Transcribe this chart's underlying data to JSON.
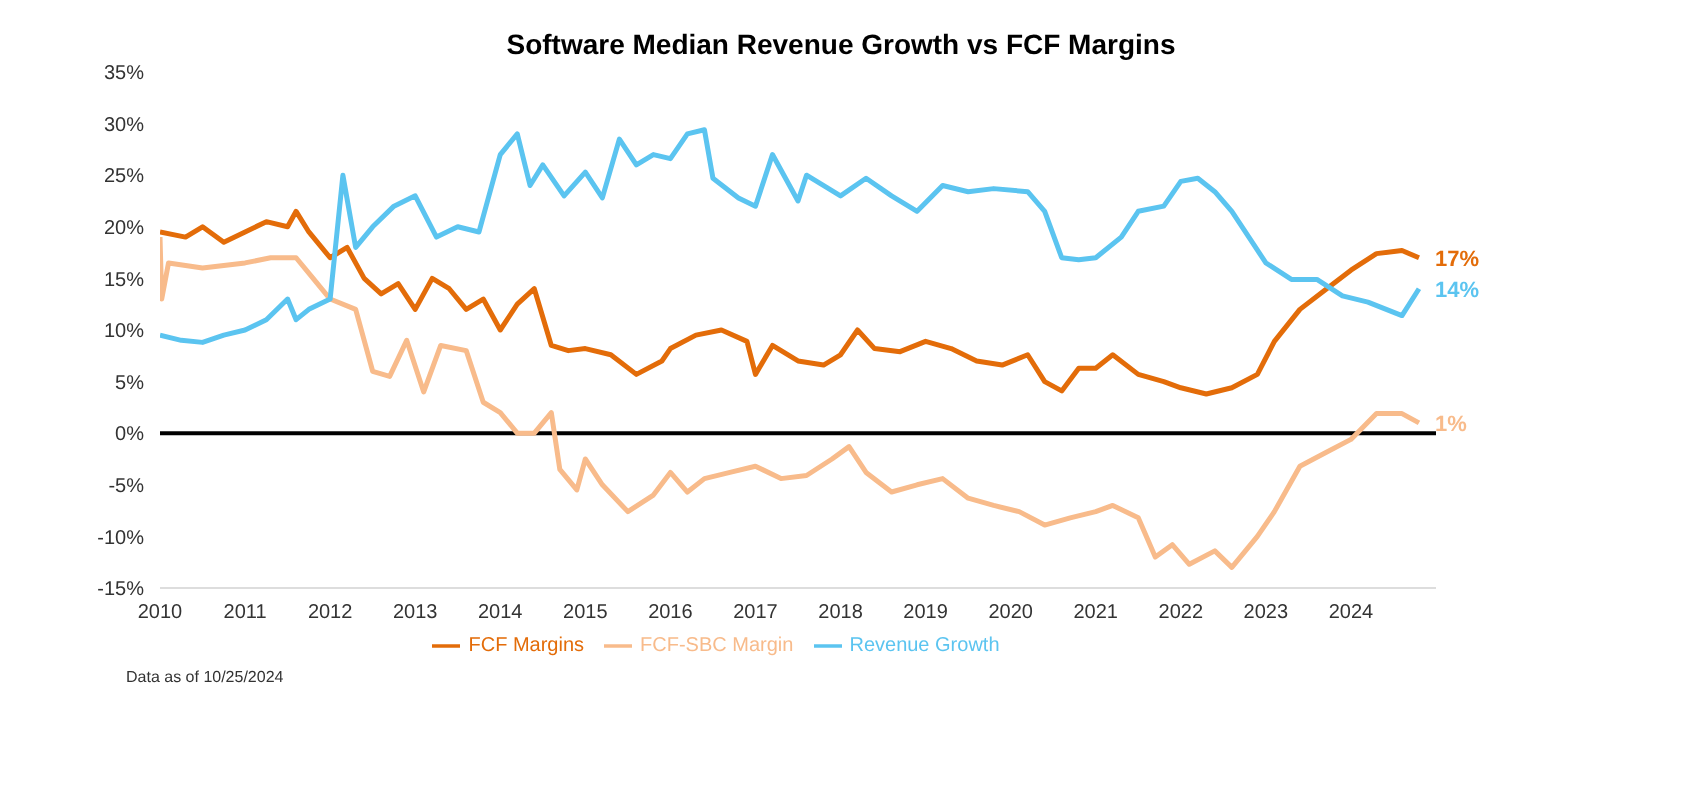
{
  "chart_data": {
    "type": "line",
    "title": "Software Median Revenue Growth vs FCF Margins",
    "xlim": [
      2010,
      2025
    ],
    "xticks": [
      2010,
      2011,
      2012,
      2013,
      2014,
      2015,
      2016,
      2017,
      2018,
      2019,
      2020,
      2021,
      2022,
      2023,
      2024
    ],
    "ylim": [
      -15,
      35
    ],
    "yticks": [
      {
        "value": -15,
        "label": "-15%"
      },
      {
        "value": -10,
        "label": "-10%"
      },
      {
        "value": -5,
        "label": "-5%"
      },
      {
        "value": 0,
        "label": "0%"
      },
      {
        "value": 5,
        "label": "5%"
      },
      {
        "value": 10,
        "label": "10%"
      },
      {
        "value": 15,
        "label": "15%"
      },
      {
        "value": 20,
        "label": "20%"
      },
      {
        "value": 25,
        "label": "25%"
      },
      {
        "value": 30,
        "label": "30%"
      },
      {
        "value": 35,
        "label": "35%"
      }
    ],
    "grid": false,
    "legend": "bottom",
    "marker": "none",
    "line_style": "solid",
    "ref_lines": [
      {
        "axis": "y",
        "value": 0,
        "color": "#000000"
      }
    ],
    "series": [
      {
        "name": "FCF Margins",
        "color": "#e36c09",
        "x": [
          2010.0,
          2010.3,
          2010.5,
          2010.75,
          2011.0,
          2011.25,
          2011.5,
          2011.6,
          2011.75,
          2012.0,
          2012.2,
          2012.4,
          2012.6,
          2012.8,
          2013.0,
          2013.2,
          2013.4,
          2013.6,
          2013.8,
          2014.0,
          2014.2,
          2014.4,
          2014.6,
          2014.8,
          2015.0,
          2015.3,
          2015.6,
          2015.9,
          2016.0,
          2016.3,
          2016.6,
          2016.9,
          2017.0,
          2017.2,
          2017.5,
          2017.8,
          2018.0,
          2018.2,
          2018.4,
          2018.7,
          2019.0,
          2019.3,
          2019.6,
          2019.9,
          2020.2,
          2020.4,
          2020.6,
          2020.8,
          2021.0,
          2021.2,
          2021.5,
          2021.8,
          2022.0,
          2022.3,
          2022.6,
          2022.9,
          2023.1,
          2023.4,
          2023.7,
          2024.0,
          2024.3,
          2024.6,
          2024.8
        ],
        "values": [
          19.5,
          19,
          20,
          18.5,
          19.5,
          20.5,
          20,
          21.5,
          19.5,
          17,
          18,
          15,
          13.5,
          14.5,
          12,
          15,
          14,
          12,
          13,
          10,
          12.5,
          14,
          8.5,
          8,
          8.2,
          7.6,
          5.7,
          7,
          8.2,
          9.5,
          10,
          8.9,
          5.7,
          8.5,
          7,
          6.6,
          7.6,
          10,
          8.2,
          7.9,
          8.9,
          8.2,
          7,
          6.6,
          7.6,
          5,
          4.1,
          6.3,
          6.3,
          7.6,
          5.7,
          5,
          4.4,
          3.8,
          4.4,
          5.7,
          8.9,
          12,
          13.9,
          15.8,
          17.4,
          17.7,
          17
        ],
        "value_labels": [
          null,
          null,
          null,
          null,
          null,
          null,
          null,
          null,
          null,
          null,
          null,
          null,
          null,
          null,
          null,
          null,
          null,
          null,
          null,
          null,
          null,
          null,
          null,
          null,
          null,
          null,
          null,
          null,
          null,
          null,
          null,
          null,
          null,
          null,
          null,
          null,
          null,
          null,
          null,
          null,
          null,
          null,
          null,
          null,
          null,
          null,
          null,
          null,
          null,
          null,
          null,
          null,
          null,
          null,
          null,
          null,
          null,
          null,
          null,
          null,
          null,
          null,
          "17%"
        ]
      },
      {
        "name": "FCF-SBC Margin",
        "color": "#f8bb8b",
        "x": [
          2010.0,
          2010.02,
          2010.1,
          2010.5,
          2011.0,
          2011.3,
          2011.6,
          2011.8,
          2012.0,
          2012.3,
          2012.5,
          2012.7,
          2012.9,
          2013.1,
          2013.3,
          2013.6,
          2013.8,
          2014.0,
          2014.2,
          2014.4,
          2014.6,
          2014.7,
          2014.9,
          2015.0,
          2015.2,
          2015.5,
          2015.8,
          2016.0,
          2016.2,
          2016.4,
          2016.7,
          2017.0,
          2017.3,
          2017.6,
          2017.9,
          2018.1,
          2018.3,
          2018.6,
          2018.9,
          2019.2,
          2019.5,
          2019.8,
          2020.1,
          2020.4,
          2020.7,
          2021.0,
          2021.2,
          2021.5,
          2021.7,
          2021.9,
          2022.1,
          2022.4,
          2022.6,
          2022.9,
          2023.1,
          2023.4,
          2023.7,
          2024.0,
          2024.3,
          2024.6,
          2024.8
        ],
        "values": [
          19,
          13,
          16.5,
          16,
          16.5,
          17,
          17,
          15,
          13,
          12,
          6,
          5.5,
          9,
          4,
          8.5,
          8,
          3,
          2,
          0,
          0,
          2,
          -3.5,
          -5.5,
          -2.5,
          -5,
          -7.6,
          -6,
          -3.8,
          -5.7,
          -4.4,
          -3.8,
          -3.2,
          -4.4,
          -4.1,
          -2.5,
          -1.3,
          -3.8,
          -5.7,
          -5,
          -4.4,
          -6.3,
          -7,
          -7.6,
          -8.9,
          -8.2,
          -7.6,
          -7,
          -8.2,
          -12,
          -10.8,
          -12.7,
          -11.4,
          -13,
          -10,
          -7.6,
          -3.2,
          -1.9,
          -0.6,
          1.9,
          1.9,
          1
        ],
        "value_labels": [
          null,
          null,
          null,
          null,
          null,
          null,
          null,
          null,
          null,
          null,
          null,
          null,
          null,
          null,
          null,
          null,
          null,
          null,
          null,
          null,
          null,
          null,
          null,
          null,
          null,
          null,
          null,
          null,
          null,
          null,
          null,
          null,
          null,
          null,
          null,
          null,
          null,
          null,
          null,
          null,
          null,
          null,
          null,
          null,
          null,
          null,
          null,
          null,
          null,
          null,
          null,
          null,
          null,
          null,
          null,
          null,
          null,
          null,
          null,
          null,
          "1%"
        ]
      },
      {
        "name": "Revenue Growth",
        "color": "#5bc4f0",
        "x": [
          2010.0,
          2010.25,
          2010.5,
          2010.75,
          2011.0,
          2011.25,
          2011.5,
          2011.6,
          2011.75,
          2012.0,
          2012.15,
          2012.3,
          2012.5,
          2012.75,
          2013.0,
          2013.25,
          2013.5,
          2013.75,
          2014.0,
          2014.2,
          2014.35,
          2014.5,
          2014.75,
          2015.0,
          2015.2,
          2015.4,
          2015.6,
          2015.8,
          2016.0,
          2016.2,
          2016.4,
          2016.5,
          2016.8,
          2017.0,
          2017.2,
          2017.5,
          2017.6,
          2018.0,
          2018.3,
          2018.6,
          2018.9,
          2019.2,
          2019.5,
          2019.8,
          2020.2,
          2020.4,
          2020.6,
          2020.8,
          2021.0,
          2021.3,
          2021.5,
          2021.8,
          2022.0,
          2022.2,
          2022.4,
          2022.6,
          2022.8,
          2023.0,
          2023.3,
          2023.6,
          2023.9,
          2024.2,
          2024.6,
          2024.8
        ],
        "values": [
          9.5,
          9,
          8.8,
          9.5,
          10,
          11,
          13,
          11,
          12,
          13,
          25,
          18,
          20,
          22,
          23,
          19,
          20,
          19.5,
          27,
          29,
          24,
          26,
          23,
          25.3,
          22.8,
          28.5,
          26,
          27,
          26.6,
          29,
          29.4,
          24.7,
          22.8,
          22,
          27,
          22.5,
          25,
          23,
          24.7,
          23,
          21.5,
          24,
          23.4,
          23.7,
          23.4,
          21.5,
          17,
          16.8,
          17,
          19,
          21.5,
          22,
          24.4,
          24.7,
          23.4,
          21.5,
          19,
          16.5,
          14.9,
          14.9,
          13.3,
          12.7,
          11.4,
          14
        ],
        "value_labels": [
          null,
          null,
          null,
          null,
          null,
          null,
          null,
          null,
          null,
          null,
          null,
          null,
          null,
          null,
          null,
          null,
          null,
          null,
          null,
          null,
          null,
          null,
          null,
          null,
          null,
          null,
          null,
          null,
          null,
          null,
          null,
          null,
          null,
          null,
          null,
          null,
          null,
          null,
          null,
          null,
          null,
          null,
          null,
          null,
          null,
          null,
          null,
          null,
          null,
          null,
          null,
          null,
          null,
          null,
          null,
          null,
          null,
          null,
          null,
          null,
          null,
          null,
          null,
          "14%"
        ]
      }
    ],
    "annotations": [
      "Data as of 10/25/2024"
    ]
  }
}
